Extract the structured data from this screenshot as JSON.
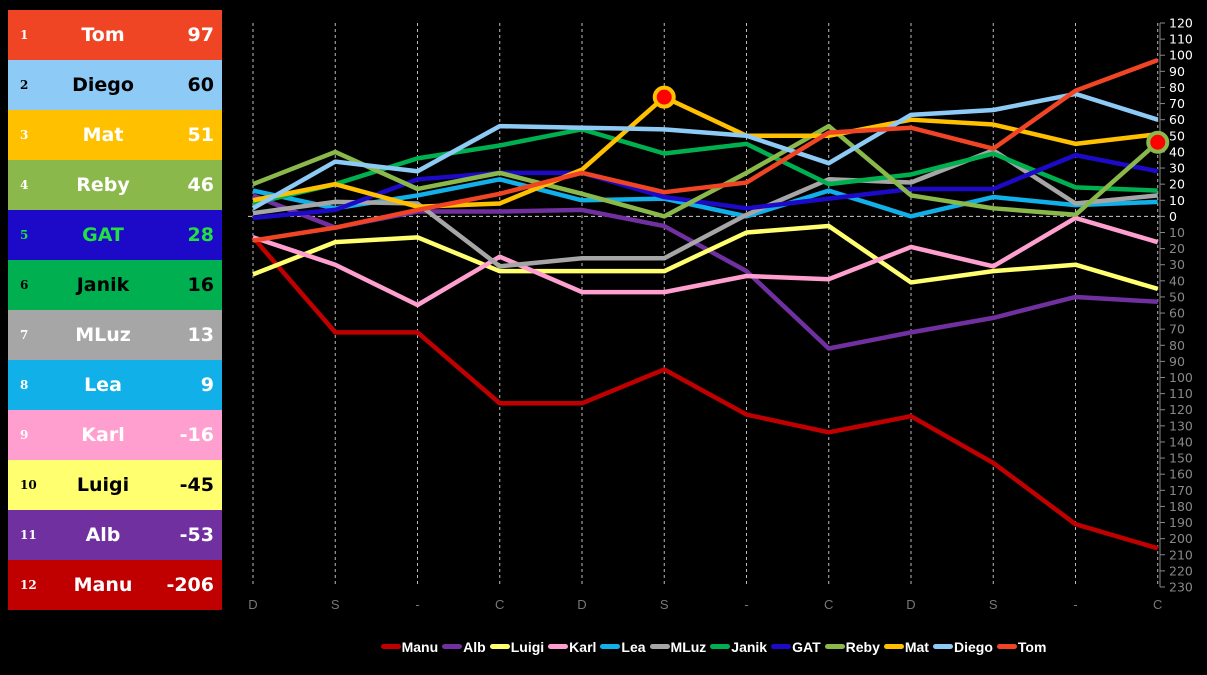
{
  "leaderboard": [
    {
      "rank": "1",
      "name": "Tom",
      "score": "97",
      "bg": "#f04524",
      "fg": "#ffffff"
    },
    {
      "rank": "2",
      "name": "Diego",
      "score": "60",
      "bg": "#8dcaf5",
      "fg": "#000000"
    },
    {
      "rank": "3",
      "name": "Mat",
      "score": "51",
      "bg": "#ffc000",
      "fg": "#ffffff"
    },
    {
      "rank": "4",
      "name": "Reby",
      "score": "46",
      "bg": "#8bb84a",
      "fg": "#ffffff"
    },
    {
      "rank": "5",
      "name": "GAT",
      "score": "28",
      "bg": "#1d0ac8",
      "fg": "#22e040"
    },
    {
      "rank": "6",
      "name": "Janik",
      "score": "16",
      "bg": "#00b050",
      "fg": "#000000"
    },
    {
      "rank": "7",
      "name": "MLuz",
      "score": "13",
      "bg": "#a6a6a6",
      "fg": "#ffffff"
    },
    {
      "rank": "8",
      "name": "Lea",
      "score": "9",
      "bg": "#12b0e8",
      "fg": "#ffffff"
    },
    {
      "rank": "9",
      "name": "Karl",
      "score": "-16",
      "bg": "#ff9fcf",
      "fg": "#ffffff"
    },
    {
      "rank": "10",
      "name": "Luigi",
      "score": "-45",
      "bg": "#ffff70",
      "fg": "#000000"
    },
    {
      "rank": "11",
      "name": "Alb",
      "score": "-53",
      "bg": "#7030a0",
      "fg": "#ffffff"
    },
    {
      "rank": "12",
      "name": "Manu",
      "score": "-206",
      "bg": "#c00000",
      "fg": "#ffffff"
    }
  ],
  "chart_data": {
    "type": "line",
    "title": "",
    "xlabel": "",
    "ylabel": "",
    "categories": [
      "D",
      "S",
      "-",
      "C",
      "D",
      "S",
      "-",
      "C",
      "D",
      "S",
      "-",
      "C"
    ],
    "ylim": [
      -230,
      120
    ],
    "ytick_step": 10,
    "grid": "vertical dashed + zero line",
    "legend_position": "bottom",
    "series": [
      {
        "name": "Manu",
        "color": "#c00000",
        "values": [
          -13,
          -72,
          -72,
          -116,
          -116,
          -95,
          -123,
          -134,
          -124,
          -153,
          -191,
          -206
        ]
      },
      {
        "name": "Alb",
        "color": "#7030a0",
        "values": [
          13,
          -7,
          3,
          3,
          4,
          -6,
          -34,
          -82,
          -72,
          -63,
          -50,
          -53
        ]
      },
      {
        "name": "Luigi",
        "color": "#ffff70",
        "values": [
          -36,
          -16,
          -13,
          -34,
          -34,
          -34,
          -10,
          -6,
          -41,
          -34,
          -30,
          -45
        ]
      },
      {
        "name": "Karl",
        "color": "#ff9fcf",
        "values": [
          -13,
          -30,
          -55,
          -25,
          -47,
          -47,
          -37,
          -39,
          -19,
          -31,
          -1,
          -16
        ]
      },
      {
        "name": "Lea",
        "color": "#12b0e8",
        "values": [
          16,
          5,
          13,
          23,
          10,
          11,
          0,
          16,
          0,
          12,
          7,
          9
        ]
      },
      {
        "name": "MLuz",
        "color": "#a6a6a6",
        "values": [
          2,
          9,
          8,
          -31,
          -26,
          -26,
          1,
          23,
          21,
          41,
          8,
          13
        ]
      },
      {
        "name": "Janik",
        "color": "#00b050",
        "values": [
          8,
          20,
          36,
          44,
          54,
          39,
          45,
          20,
          26,
          39,
          18,
          16
        ]
      },
      {
        "name": "GAT",
        "color": "#1d0ac8",
        "values": [
          -1,
          4,
          23,
          27,
          27,
          12,
          5,
          11,
          17,
          17,
          38,
          28
        ]
      },
      {
        "name": "Reby",
        "color": "#8bb84a",
        "values": [
          20,
          40,
          17,
          27,
          14,
          0,
          27,
          56,
          13,
          5,
          1,
          46
        ]
      },
      {
        "name": "Mat",
        "color": "#ffc000",
        "values": [
          10,
          20,
          6,
          8,
          29,
          74,
          50,
          50,
          60,
          57,
          45,
          51
        ]
      },
      {
        "name": "Diego",
        "color": "#8dcaf5",
        "values": [
          5,
          34,
          28,
          56,
          55,
          54,
          50,
          33,
          63,
          66,
          76,
          60
        ]
      },
      {
        "name": "Tom",
        "color": "#f04524",
        "values": [
          -15,
          -7,
          4,
          14,
          27,
          15,
          21,
          52,
          55,
          42,
          78,
          97
        ]
      }
    ],
    "highlights": [
      {
        "series": "Mat",
        "index": 5
      },
      {
        "series": "Reby",
        "index": 11
      }
    ]
  }
}
